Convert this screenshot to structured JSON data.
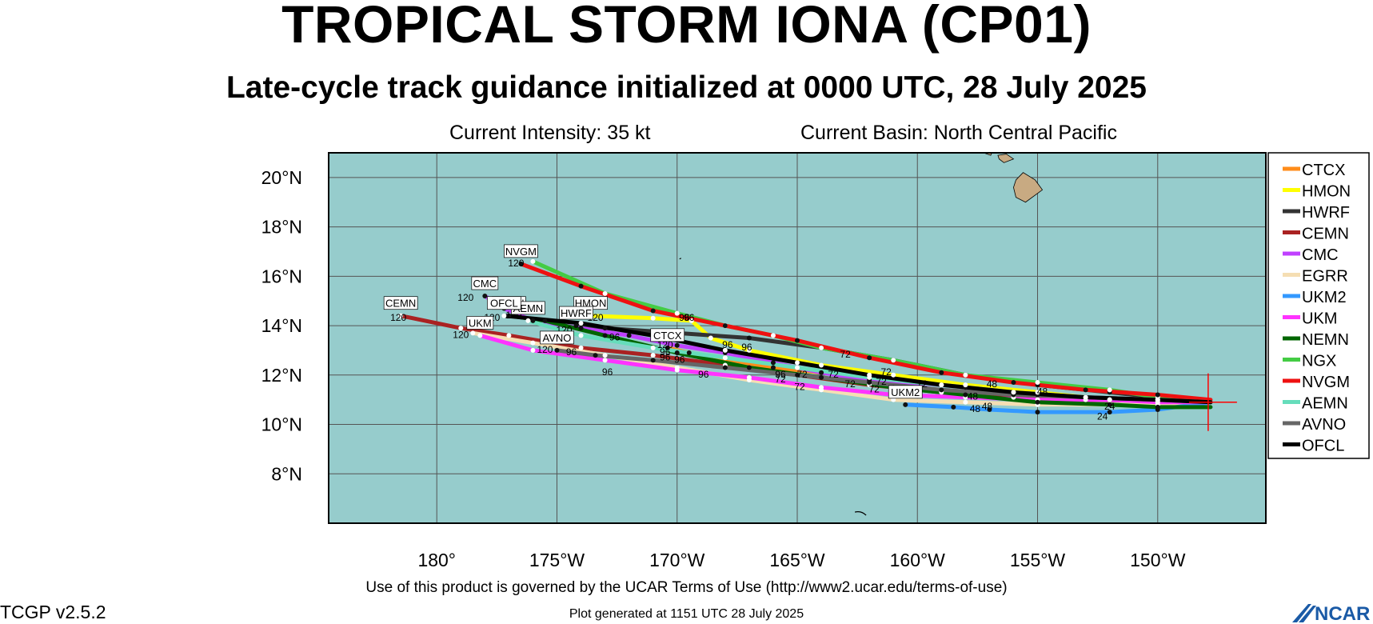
{
  "header": {
    "title": "TROPICAL STORM IONA (CP01)",
    "subtitle": "Late-cycle track guidance initialized at 0000 UTC, 28 July 2025",
    "intensity": "Current Intensity: 35 kt",
    "basin": "Current Basin: North Central Pacific"
  },
  "footer": {
    "terms": "Use of this product is governed by the UCAR Terms of Use (http://www2.ucar.edu/terms-of-use)",
    "generated": "Plot generated at 1151 UTC   28 July 2025",
    "version": "TCGP v2.5.2",
    "logo_text": "NCAR"
  },
  "colors": {
    "ocean": "#96cccc",
    "land": "#c8aa82",
    "grid": "#555555"
  },
  "chart_data": {
    "type": "line",
    "map": {
      "lon_range": [
        -184.5,
        -145.5
      ],
      "lat_range": [
        6.0,
        21.0
      ],
      "x_ticks": [
        -180,
        -175,
        -170,
        -165,
        -160,
        -155,
        -150
      ],
      "x_tick_labels": [
        "180°",
        "175°W",
        "170°W",
        "165°W",
        "160°W",
        "155°W",
        "150°W"
      ],
      "y_ticks": [
        8,
        10,
        12,
        14,
        16,
        18,
        20
      ],
      "y_tick_labels": [
        "8°N",
        "10°N",
        "12°N",
        "14°N",
        "16°N",
        "18°N",
        "20°N"
      ],
      "grid": true,
      "legend_position": "right",
      "current_position": {
        "lon": -147.9,
        "lat": 10.9
      }
    },
    "series": [
      {
        "name": "CTCX",
        "color": "#ff8c1a",
        "end_label": "CTCX",
        "points": [
          [
            -147.8,
            10.9
          ],
          [
            -150,
            11.0
          ],
          [
            -152,
            11.0
          ],
          [
            -155,
            11.2
          ],
          [
            -158,
            11.5
          ],
          [
            -162,
            11.9
          ],
          [
            -166,
            12.3
          ],
          [
            -169.5,
            12.9
          ],
          [
            -170.4,
            13.1
          ]
        ]
      },
      {
        "name": "HMON",
        "color": "#ffff00",
        "end_label": "HMON",
        "points": [
          [
            -147.8,
            10.9
          ],
          [
            -150,
            11.0
          ],
          [
            -152,
            11.0
          ],
          [
            -155,
            11.3
          ],
          [
            -158,
            11.6
          ],
          [
            -161,
            12.0
          ],
          [
            -164,
            12.4
          ],
          [
            -167,
            13.0
          ],
          [
            -168.6,
            13.5
          ],
          [
            -169.4,
            14.2
          ],
          [
            -171,
            14.3
          ],
          [
            -173.6,
            14.4
          ]
        ]
      },
      {
        "name": "HWRF",
        "color": "#333333",
        "end_label": "HWRF",
        "points": [
          [
            -147.8,
            10.9
          ],
          [
            -150,
            11.1
          ],
          [
            -152,
            11.3
          ],
          [
            -155,
            11.6
          ],
          [
            -158,
            12.0
          ],
          [
            -161,
            12.6
          ],
          [
            -164,
            13.1
          ],
          [
            -167,
            13.5
          ],
          [
            -170,
            13.7
          ],
          [
            -173,
            13.9
          ],
          [
            -174.2,
            14.0
          ]
        ]
      },
      {
        "name": "CEMN",
        "color": "#aa2222",
        "end_label": "CEMN",
        "points": [
          [
            -147.8,
            10.9
          ],
          [
            -150,
            10.95
          ],
          [
            -153,
            11.0
          ],
          [
            -156,
            11.1
          ],
          [
            -159,
            11.3
          ],
          [
            -162,
            11.6
          ],
          [
            -165,
            12.0
          ],
          [
            -168,
            12.4
          ],
          [
            -171,
            12.8
          ],
          [
            -174,
            13.1
          ],
          [
            -177,
            13.6
          ],
          [
            -179,
            13.9
          ],
          [
            -181.5,
            14.4
          ]
        ]
      },
      {
        "name": "CMC",
        "color": "#c040ff",
        "end_label": "CMC",
        "points": [
          [
            -147.8,
            10.9
          ],
          [
            -150,
            11.0
          ],
          [
            -153,
            11.1
          ],
          [
            -156,
            11.3
          ],
          [
            -159,
            11.6
          ],
          [
            -162,
            11.8
          ],
          [
            -164,
            12.1
          ],
          [
            -166,
            12.5
          ],
          [
            -168,
            12.9
          ],
          [
            -170,
            13.2
          ],
          [
            -172,
            13.6
          ],
          [
            -174,
            13.9
          ],
          [
            -176,
            14.2
          ],
          [
            -177.2,
            14.7
          ],
          [
            -178.0,
            15.2
          ]
        ]
      },
      {
        "name": "EGRR",
        "color": "#f5deb3",
        "end_label": "",
        "points": [
          [
            -147.8,
            10.9
          ],
          [
            -150,
            10.8
          ],
          [
            -152,
            10.8
          ],
          [
            -155,
            10.8
          ],
          [
            -158,
            10.9
          ],
          [
            -161,
            11.0
          ],
          [
            -164,
            11.4
          ],
          [
            -167,
            11.8
          ],
          [
            -170,
            12.3
          ],
          [
            -173,
            12.8
          ],
          [
            -176,
            13.3
          ],
          [
            -178.5,
            13.7
          ]
        ]
      },
      {
        "name": "UKM2",
        "color": "#3399ff",
        "end_label": "UKM2",
        "points": [
          [
            -147.8,
            10.9
          ],
          [
            -150,
            10.6
          ],
          [
            -152,
            10.5
          ],
          [
            -155,
            10.5
          ],
          [
            -157,
            10.6
          ],
          [
            -158.5,
            10.7
          ],
          [
            -160.5,
            10.8
          ]
        ]
      },
      {
        "name": "UKM",
        "color": "#ff33ff",
        "end_label": "UKM",
        "points": [
          [
            -147.8,
            10.9
          ],
          [
            -150,
            10.9
          ],
          [
            -152,
            11.0
          ],
          [
            -155,
            11.0
          ],
          [
            -158,
            11.1
          ],
          [
            -161,
            11.2
          ],
          [
            -164,
            11.5
          ],
          [
            -167,
            11.9
          ],
          [
            -170,
            12.2
          ],
          [
            -173,
            12.6
          ],
          [
            -176,
            13.0
          ],
          [
            -178.2,
            13.6
          ]
        ]
      },
      {
        "name": "NEMN",
        "color": "#006600",
        "end_label": "NEMN",
        "points": [
          [
            -147.8,
            10.7
          ],
          [
            -150,
            10.7
          ],
          [
            -152,
            10.8
          ],
          [
            -155,
            10.9
          ],
          [
            -158,
            11.2
          ],
          [
            -161,
            11.5
          ],
          [
            -164,
            11.9
          ],
          [
            -167,
            12.3
          ],
          [
            -170,
            12.9
          ],
          [
            -173,
            13.6
          ],
          [
            -175.5,
            14.2
          ],
          [
            -177.0,
            14.4
          ]
        ]
      },
      {
        "name": "NGX",
        "color": "#44cc44",
        "end_label": "",
        "points": [
          [
            -147.8,
            10.9
          ],
          [
            -150,
            11.1
          ],
          [
            -152,
            11.4
          ],
          [
            -155,
            11.7
          ],
          [
            -158,
            12.0
          ],
          [
            -161,
            12.6
          ],
          [
            -164,
            13.1
          ],
          [
            -166,
            13.6
          ],
          [
            -168,
            14.0
          ],
          [
            -170,
            14.5
          ],
          [
            -173,
            15.3
          ],
          [
            -176.0,
            16.6
          ]
        ]
      },
      {
        "name": "NVGM",
        "color": "#ee1111",
        "end_label": "NVGM",
        "points": [
          [
            -147.8,
            11.0
          ],
          [
            -150,
            11.2
          ],
          [
            -153,
            11.4
          ],
          [
            -156,
            11.7
          ],
          [
            -159,
            12.1
          ],
          [
            -162,
            12.7
          ],
          [
            -165,
            13.4
          ],
          [
            -168,
            14.0
          ],
          [
            -171,
            14.6
          ],
          [
            -174,
            15.6
          ],
          [
            -176.5,
            16.5
          ]
        ]
      },
      {
        "name": "AEMN",
        "color": "#66ddbb",
        "end_label": "AEMN",
        "points": [
          [
            -147.8,
            10.9
          ],
          [
            -150,
            11.0
          ],
          [
            -153,
            11.1
          ],
          [
            -156,
            11.3
          ],
          [
            -159,
            11.6
          ],
          [
            -162,
            11.9
          ],
          [
            -165,
            12.3
          ],
          [
            -168,
            12.7
          ],
          [
            -171,
            13.1
          ],
          [
            -174,
            13.6
          ],
          [
            -176.2,
            14.2
          ]
        ]
      },
      {
        "name": "AVNO",
        "color": "#666666",
        "end_label": "AVNO",
        "points": [
          [
            -147.8,
            10.9
          ],
          [
            -150,
            11.0
          ],
          [
            -153,
            11.1
          ],
          [
            -156,
            11.2
          ],
          [
            -159,
            11.4
          ],
          [
            -162,
            11.7
          ],
          [
            -165,
            12.0
          ],
          [
            -168,
            12.3
          ],
          [
            -171,
            12.6
          ],
          [
            -173.4,
            12.8
          ],
          [
            -175.0,
            13.0
          ]
        ]
      },
      {
        "name": "OFCL",
        "color": "#000000",
        "end_label": "OFCL",
        "points": [
          [
            -147.8,
            10.9
          ],
          [
            -150,
            11.0
          ],
          [
            -153,
            11.1
          ],
          [
            -156,
            11.3
          ],
          [
            -159,
            11.6
          ],
          [
            -162,
            12.0
          ],
          [
            -165,
            12.5
          ],
          [
            -168,
            13.0
          ],
          [
            -171,
            13.6
          ],
          [
            -174,
            14.1
          ],
          [
            -177.2,
            14.4
          ]
        ]
      }
    ],
    "hour_labels": [
      {
        "text": "120",
        "lon": -181.6,
        "lat": 14.2
      },
      {
        "text": "120",
        "lon": -179.0,
        "lat": 13.5
      },
      {
        "text": "120",
        "lon": -178.8,
        "lat": 15.0
      },
      {
        "text": "120",
        "lon": -176.7,
        "lat": 16.4
      },
      {
        "text": "120",
        "lon": -177.7,
        "lat": 14.2
      },
      {
        "text": "120",
        "lon": -176.8,
        "lat": 14.3
      },
      {
        "text": "120",
        "lon": -174.7,
        "lat": 13.7
      },
      {
        "text": "120",
        "lon": -175.5,
        "lat": 12.9
      },
      {
        "text": "120",
        "lon": -173.4,
        "lat": 14.2
      },
      {
        "text": "120",
        "lon": -170.5,
        "lat": 13.1
      },
      {
        "text": "96",
        "lon": -174.4,
        "lat": 12.8
      },
      {
        "text": "96",
        "lon": -172.6,
        "lat": 13.4
      },
      {
        "text": "96",
        "lon": -172.9,
        "lat": 12.0
      },
      {
        "text": "96",
        "lon": -170.5,
        "lat": 12.8
      },
      {
        "text": "96",
        "lon": -170.5,
        "lat": 12.6
      },
      {
        "text": "96",
        "lon": -169.9,
        "lat": 12.5
      },
      {
        "text": "96",
        "lon": -169.7,
        "lat": 14.2
      },
      {
        "text": "96",
        "lon": -169.5,
        "lat": 14.2
      },
      {
        "text": "96",
        "lon": -168.9,
        "lat": 11.9
      },
      {
        "text": "96",
        "lon": -167.9,
        "lat": 13.1
      },
      {
        "text": "96",
        "lon": -167.1,
        "lat": 13.0
      },
      {
        "text": "96",
        "lon": -165.7,
        "lat": 11.9
      },
      {
        "text": "72",
        "lon": -165.7,
        "lat": 11.7
      },
      {
        "text": "72",
        "lon": -164.9,
        "lat": 11.4
      },
      {
        "text": "72",
        "lon": -164.8,
        "lat": 11.9
      },
      {
        "text": "72",
        "lon": -163.0,
        "lat": 12.7
      },
      {
        "text": "72",
        "lon": -163.5,
        "lat": 11.9
      },
      {
        "text": "72",
        "lon": -162.8,
        "lat": 11.5
      },
      {
        "text": "72",
        "lon": -161.8,
        "lat": 11.3
      },
      {
        "text": "72",
        "lon": -161.5,
        "lat": 11.6
      },
      {
        "text": "72",
        "lon": -161.3,
        "lat": 12.0
      },
      {
        "text": "72",
        "lon": -159.8,
        "lat": 11.5
      },
      {
        "text": "48",
        "lon": -157.6,
        "lat": 10.5
      },
      {
        "text": "48",
        "lon": -157.1,
        "lat": 10.6
      },
      {
        "text": "48",
        "lon": -157.7,
        "lat": 11.0
      },
      {
        "text": "48",
        "lon": -156.9,
        "lat": 11.5
      },
      {
        "text": "48",
        "lon": -154.8,
        "lat": 11.2
      },
      {
        "text": "24",
        "lon": -152.3,
        "lat": 10.2
      },
      {
        "text": "24",
        "lon": -152.0,
        "lat": 10.6
      }
    ],
    "legend": [
      "CTCX",
      "HMON",
      "HWRF",
      "CEMN",
      "CMC",
      "EGRR",
      "UKM2",
      "UKM",
      "NEMN",
      "NGX",
      "NVGM",
      "AEMN",
      "AVNO",
      "OFCL"
    ]
  }
}
